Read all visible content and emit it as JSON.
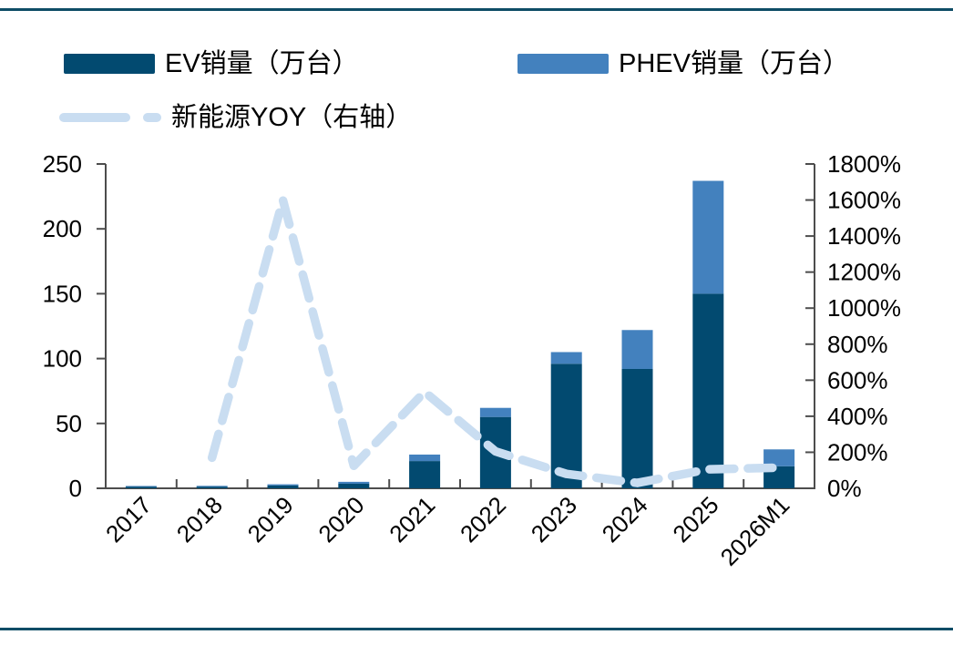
{
  "page": {
    "background": "#ffffff",
    "rule_color": "#0e4d66"
  },
  "legend": {
    "position": "top-left",
    "items": [
      {
        "label": "EV销量（万台）",
        "color": "#024a70",
        "marker": "box"
      },
      {
        "label": "PHEV销量（万台）",
        "color": "#4381be",
        "marker": "box"
      },
      {
        "label": "新能源YOY（右轴）",
        "color": "#c9ddf1",
        "marker": "dashed-line"
      }
    ]
  },
  "chart_data": {
    "type": "bar",
    "subtype": "stacked-bar-with-line",
    "title": "",
    "xlabel": "",
    "ylabel_left": "",
    "ylabel_right": "",
    "grid": false,
    "categories": [
      "2017",
      "2018",
      "2019",
      "2020",
      "2021",
      "2022",
      "2023",
      "2024",
      "2025",
      "2026M1"
    ],
    "series": [
      {
        "name": "EV销量（万台）",
        "type": "bar",
        "stack": "nev",
        "axis": "left",
        "color": "#024a70",
        "values": [
          1.3,
          1.3,
          2.2,
          3.5,
          21,
          55,
          96,
          92,
          150,
          17
        ]
      },
      {
        "name": "PHEV销量（万台）",
        "type": "bar",
        "stack": "nev",
        "axis": "left",
        "color": "#4381be",
        "values": [
          0.5,
          0.6,
          0.9,
          1.5,
          5,
          7,
          9,
          30,
          87,
          13
        ]
      },
      {
        "name": "新能源YOY（右轴）",
        "type": "line",
        "dashed": true,
        "axis": "right",
        "color": "#c9ddf1",
        "values": [
          null,
          170,
          1600,
          125,
          535,
          205,
          80,
          30,
          105,
          115
        ]
      }
    ],
    "left_axis": {
      "min": 0,
      "max": 250,
      "step": 50,
      "ticks": [
        "0",
        "50",
        "100",
        "150",
        "200",
        "250"
      ]
    },
    "right_axis": {
      "min": 0,
      "max": 1800,
      "step": 200,
      "unit": "%",
      "ticks": [
        "0%",
        "200%",
        "400%",
        "600%",
        "800%",
        "1000%",
        "1200%",
        "1400%",
        "1600%",
        "1800%"
      ]
    },
    "axis_color": "#4d4d4d"
  }
}
